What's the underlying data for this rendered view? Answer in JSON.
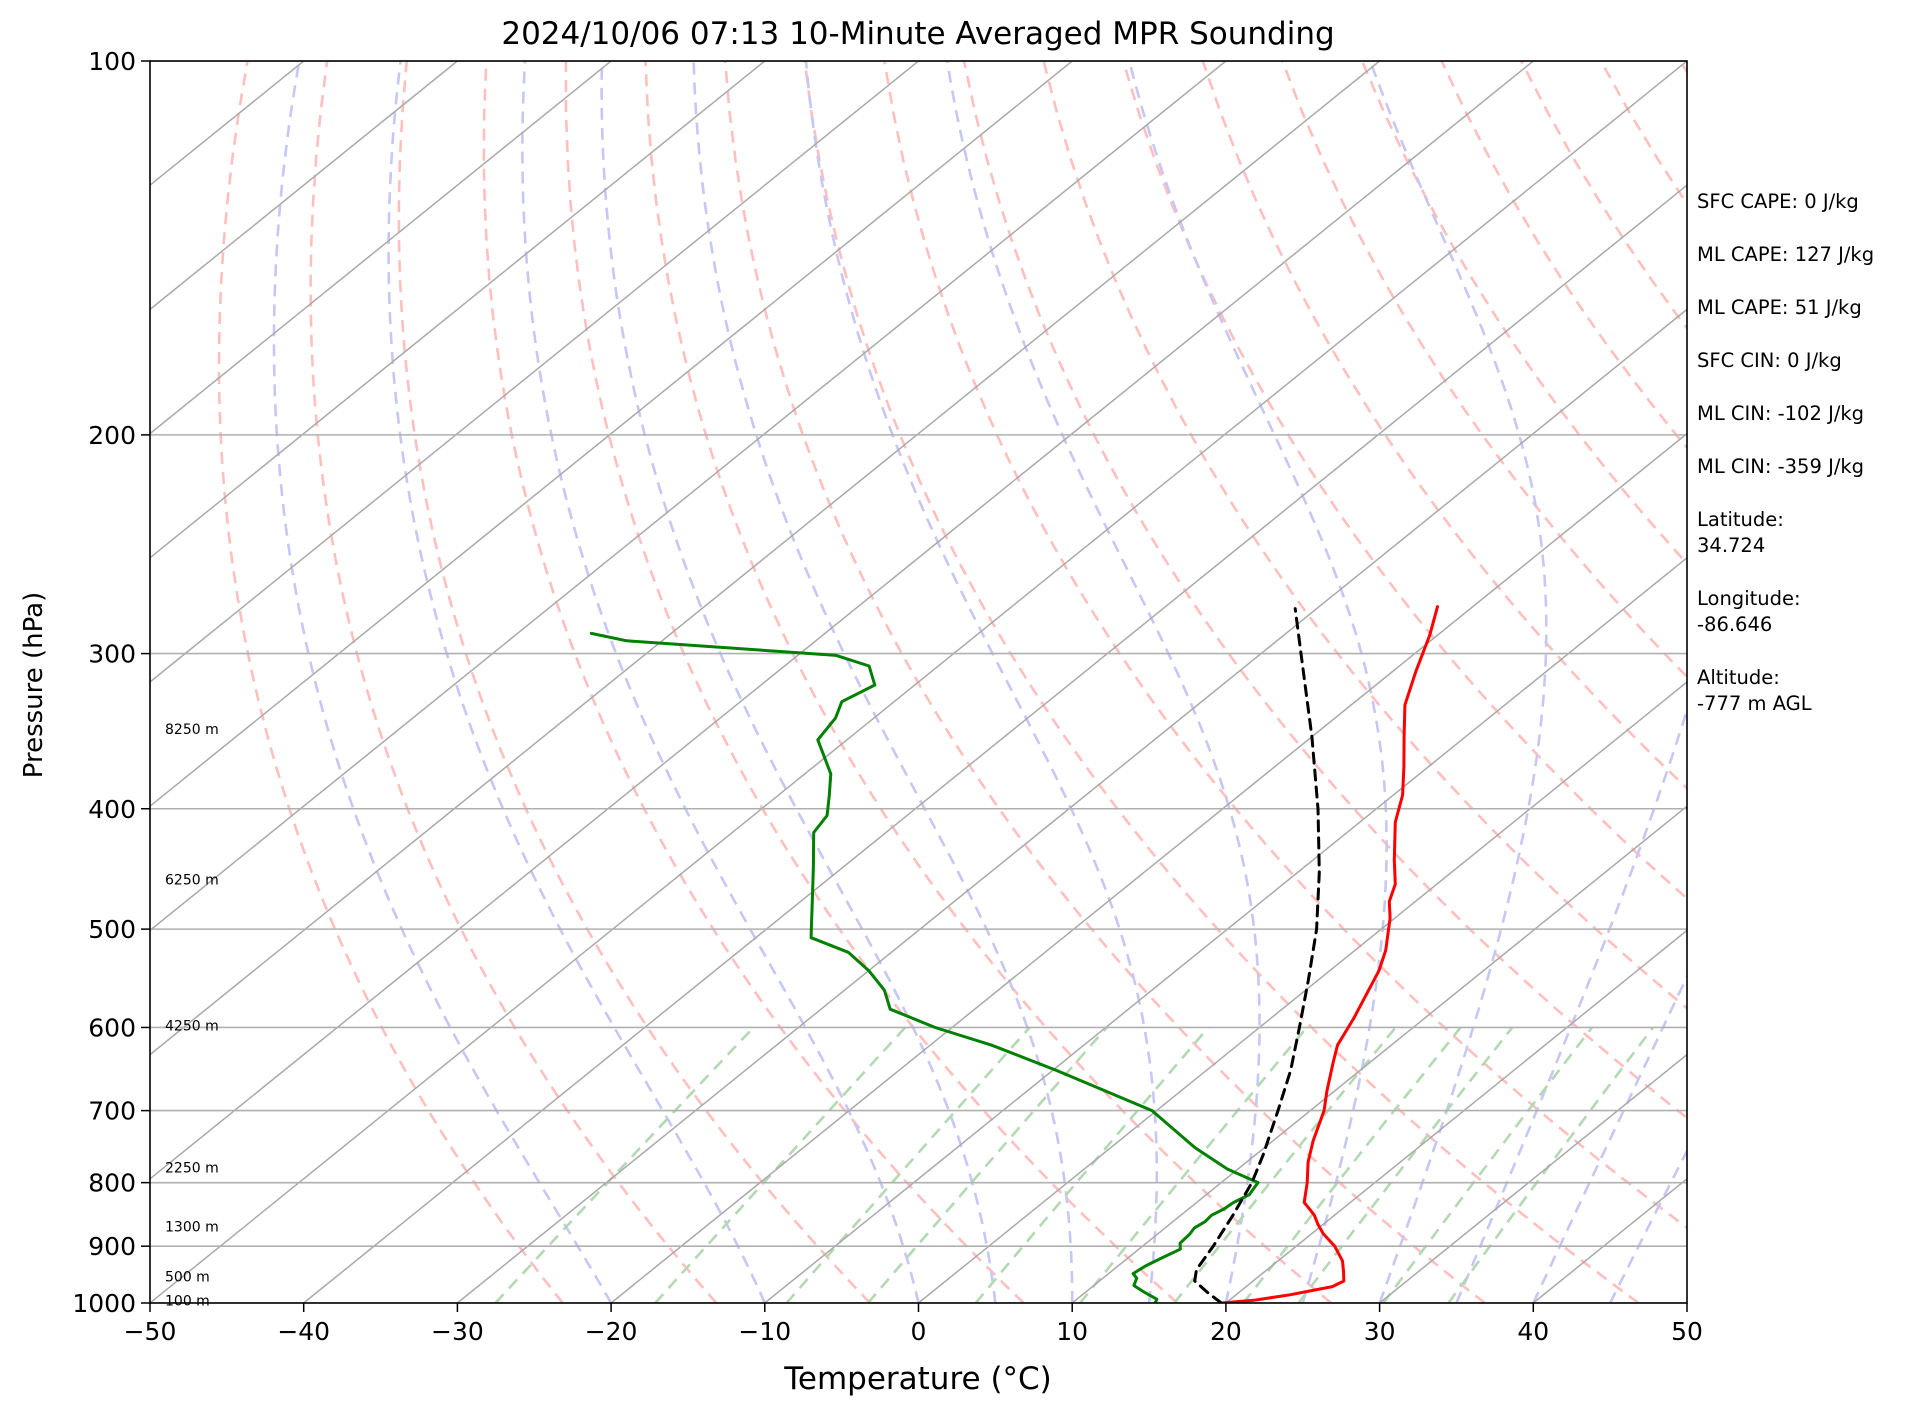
{
  "chart_data": {
    "type": "line",
    "title": "2024/10/06 07:13 10-Minute Averaged MPR Sounding",
    "xlabel": "Temperature (°C)",
    "ylabel": "Pressure (hPa)",
    "xlim": [
      -50,
      50
    ],
    "ylim": [
      1000,
      100
    ],
    "y_scale": "log",
    "skew": "skew-T",
    "grid": true,
    "x_ticks": [
      -50,
      -40,
      -30,
      -20,
      -10,
      0,
      10,
      20,
      30,
      40,
      50
    ],
    "x_tick_labels": [
      "−50",
      "−40",
      "−30",
      "−20",
      "−10",
      "0",
      "10",
      "20",
      "30",
      "40",
      "50"
    ],
    "y_ticks": [
      1000,
      900,
      800,
      700,
      600,
      500,
      400,
      300,
      200,
      100
    ],
    "y_tick_labels": [
      "1000",
      "900",
      "800",
      "700",
      "600",
      "500",
      "400",
      "300",
      "200",
      "100"
    ],
    "height_labels": [
      {
        "text": "8250 m",
        "p": 345
      },
      {
        "text": "6250 m",
        "p": 456
      },
      {
        "text": "4250 m",
        "p": 598
      },
      {
        "text": "2250 m",
        "p": 778
      },
      {
        "text": "1300 m",
        "p": 868
      },
      {
        "text": "500 m",
        "p": 952
      },
      {
        "text": "100 m",
        "p": 995
      }
    ],
    "series": [
      {
        "role": "temperature",
        "color": "#ff0000",
        "points": [
          {
            "p": 1000,
            "t": 19.7
          },
          {
            "p": 995,
            "t": 21.6
          },
          {
            "p": 985,
            "t": 23.5
          },
          {
            "p": 970,
            "t": 25.6
          },
          {
            "p": 960,
            "t": 25.9
          },
          {
            "p": 945,
            "t": 25.2
          },
          {
            "p": 925,
            "t": 24.2
          },
          {
            "p": 900,
            "t": 22.5
          },
          {
            "p": 880,
            "t": 20.8
          },
          {
            "p": 865,
            "t": 19.7
          },
          {
            "p": 850,
            "t": 18.7
          },
          {
            "p": 838,
            "t": 17.7
          },
          {
            "p": 830,
            "t": 17.0
          },
          {
            "p": 800,
            "t": 15.6
          },
          {
            "p": 770,
            "t": 14.0
          },
          {
            "p": 740,
            "t": 12.6
          },
          {
            "p": 700,
            "t": 10.9
          },
          {
            "p": 675,
            "t": 9.5
          },
          {
            "p": 640,
            "t": 7.6
          },
          {
            "p": 620,
            "t": 6.5
          },
          {
            "p": 590,
            "t": 5.4
          },
          {
            "p": 540,
            "t": 3.2
          },
          {
            "p": 520,
            "t": 2.0
          },
          {
            "p": 490,
            "t": -0.3
          },
          {
            "p": 475,
            "t": -1.7
          },
          {
            "p": 460,
            "t": -2.7
          },
          {
            "p": 440,
            "t": -4.7
          },
          {
            "p": 410,
            "t": -7.7
          },
          {
            "p": 390,
            "t": -9.4
          },
          {
            "p": 370,
            "t": -11.6
          },
          {
            "p": 350,
            "t": -14.0
          },
          {
            "p": 330,
            "t": -16.5
          },
          {
            "p": 310,
            "t": -18.5
          },
          {
            "p": 290,
            "t": -20.5
          },
          {
            "p": 275,
            "t": -22.3
          }
        ]
      },
      {
        "role": "dewpoint",
        "color": "#008000",
        "points": [
          {
            "p": 1000,
            "t": 15.4
          },
          {
            "p": 993,
            "t": 15.2
          },
          {
            "p": 980,
            "t": 13.8
          },
          {
            "p": 968,
            "t": 12.6
          },
          {
            "p": 955,
            "t": 12.2
          },
          {
            "p": 947,
            "t": 11.6
          },
          {
            "p": 933,
            "t": 11.8
          },
          {
            "p": 920,
            "t": 12.2
          },
          {
            "p": 905,
            "t": 12.7
          },
          {
            "p": 895,
            "t": 12.2
          },
          {
            "p": 880,
            "t": 12.1
          },
          {
            "p": 870,
            "t": 11.9
          },
          {
            "p": 860,
            "t": 12.1
          },
          {
            "p": 850,
            "t": 12.0
          },
          {
            "p": 840,
            "t": 12.3
          },
          {
            "p": 830,
            "t": 12.4
          },
          {
            "p": 818,
            "t": 12.8
          },
          {
            "p": 800,
            "t": 12.4
          },
          {
            "p": 780,
            "t": 9.3
          },
          {
            "p": 750,
            "t": 5.5
          },
          {
            "p": 700,
            "t": -0.3
          },
          {
            "p": 650,
            "t": -9.7
          },
          {
            "p": 620,
            "t": -16.0
          },
          {
            "p": 600,
            "t": -21.1
          },
          {
            "p": 580,
            "t": -25.5
          },
          {
            "p": 560,
            "t": -27.4
          },
          {
            "p": 540,
            "t": -30.0
          },
          {
            "p": 522,
            "t": -32.8
          },
          {
            "p": 508,
            "t": -36.4
          },
          {
            "p": 495,
            "t": -37.5
          },
          {
            "p": 480,
            "t": -38.8
          },
          {
            "p": 445,
            "t": -42.0
          },
          {
            "p": 418,
            "t": -44.7
          },
          {
            "p": 405,
            "t": -45.2
          },
          {
            "p": 390,
            "t": -46.7
          },
          {
            "p": 375,
            "t": -48.3
          },
          {
            "p": 352,
            "t": -51.9
          },
          {
            "p": 338,
            "t": -52.5
          },
          {
            "p": 328,
            "t": -53.4
          },
          {
            "p": 318,
            "t": -52.6
          },
          {
            "p": 307,
            "t": -54.5
          },
          {
            "p": 301,
            "t": -57.5
          },
          {
            "p": 293,
            "t": -72.3
          },
          {
            "p": 289,
            "t": -75.2
          }
        ]
      },
      {
        "role": "parcel",
        "color": "#000000",
        "dashed": true,
        "points": [
          {
            "p": 1000,
            "t": 19.7
          },
          {
            "p": 980,
            "t": 17.9
          },
          {
            "p": 960,
            "t": 16.2
          },
          {
            "p": 940,
            "t": 15.4
          },
          {
            "p": 900,
            "t": 14.6
          },
          {
            "p": 850,
            "t": 13.4
          },
          {
            "p": 800,
            "t": 12.0
          },
          {
            "p": 760,
            "t": 10.5
          },
          {
            "p": 700,
            "t": 7.9
          },
          {
            "p": 650,
            "t": 5.5
          },
          {
            "p": 600,
            "t": 2.6
          },
          {
            "p": 550,
            "t": -0.6
          },
          {
            "p": 500,
            "t": -4.2
          },
          {
            "p": 450,
            "t": -8.6
          },
          {
            "p": 400,
            "t": -13.8
          },
          {
            "p": 350,
            "t": -20.0
          },
          {
            "p": 300,
            "t": -27.4
          },
          {
            "p": 276,
            "t": -31.4
          }
        ]
      }
    ],
    "reference_lines": {
      "isotherm_color": "#a9a9a9",
      "dry_adiabat_color": "#ffbfbf",
      "moist_adiabat_color": "#c7c7f5",
      "mixing_ratio_color": "#b3d9b3"
    }
  },
  "info_panel": {
    "lines": [
      "SFC CAPE: 0 J/kg",
      "ML CAPE: 127 J/kg",
      "ML CAPE: 51 J/kg",
      "SFC CIN: 0 J/kg",
      "ML CIN: -102 J/kg",
      "ML CIN: -359 J/kg"
    ],
    "latitude_label": "Latitude:",
    "latitude_value": "34.724",
    "longitude_label": "Longitude:",
    "longitude_value": "-86.646",
    "altitude_label": "Altitude:",
    "altitude_value": "-777 m AGL"
  }
}
